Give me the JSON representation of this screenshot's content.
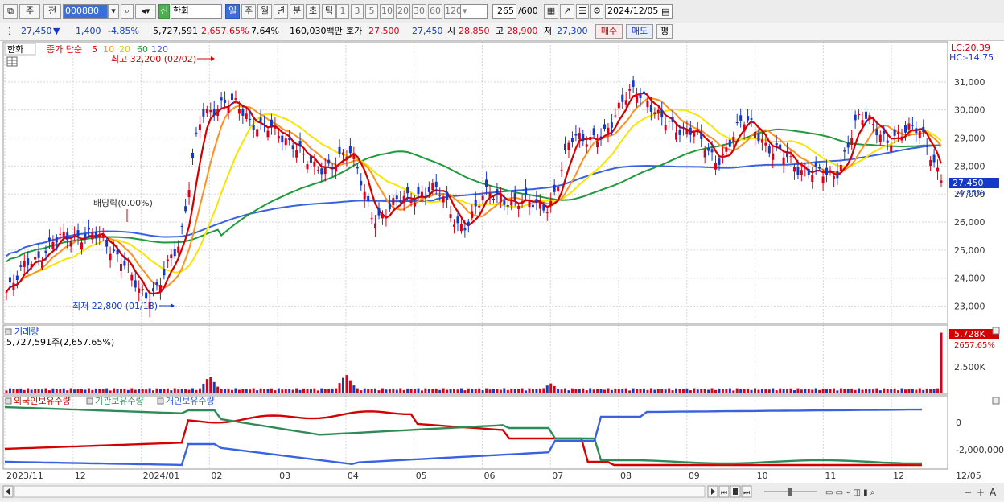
{
  "toolbar": {
    "period_button": "주",
    "prev_button": "전",
    "code": "000880",
    "shin_badge": "신",
    "stock_name": "한화",
    "period_tabs": [
      "일",
      "주",
      "월",
      "년",
      "분",
      "초",
      "틱"
    ],
    "minute_tabs": [
      "1",
      "3",
      "5",
      "10",
      "20",
      "30",
      "60",
      "120"
    ],
    "count": "265",
    "count_total": "/600",
    "date": "2024/12/05"
  },
  "quote": {
    "price": "27,450",
    "arrow": "▼",
    "change": "1,400",
    "change_pct": "-4.85%",
    "volume": "5,727,591",
    "volume_pct": "2,657.65%",
    "turnover": "7.64%",
    "amount": "160,030백만",
    "ask_label": "호가",
    "ask": "27,500",
    "bid": "27,450",
    "open_label": "시",
    "open": "28,850",
    "high_label": "고",
    "high": "28,900",
    "low_label": "저",
    "low": "27,300",
    "buy_button": "매수",
    "sell_button": "매도",
    "eval_button": "평"
  },
  "colors": {
    "up": "#d9001b",
    "down": "#1339c6",
    "ma5": "#d40000",
    "ma10": "#ff9020",
    "ma20": "#f6e600",
    "ma60": "#1f9a3c",
    "ma120": "#3a62e0",
    "foreign": "#d40000",
    "institution": "#2e8b57",
    "individual": "#3a62e0"
  },
  "price_panel": {
    "legend_name": "한화",
    "legend_type": "종가 단순",
    "ma_periods": [
      "5",
      "10",
      "20",
      "60",
      "120"
    ],
    "high_note": "최고 32,200 (02/02)",
    "low_note": "최저 22,800 (01/18)",
    "dividend_note": "배당락(0.00%)",
    "lc": "LC:20.39",
    "hc": "HC:-14.75",
    "current_price": "27,450",
    "current_pct": "-4.85%",
    "y_ticks": [
      "31,000",
      "30,000",
      "29,000",
      "28,000",
      "27,000",
      "26,000",
      "25,000",
      "24,000",
      "23,000"
    ]
  },
  "volume_panel": {
    "title": "거래량",
    "value_note": "5,727,591주(2,657.65%)",
    "current": "5,728K",
    "current_pct": "2657.65%",
    "y_tick": "2,500K"
  },
  "holding_panel": {
    "foreign": "외국인보유수량",
    "institution": "기관보유수량",
    "individual": "개인보유수량",
    "y_ticks": [
      "0",
      "-2,000,000"
    ]
  },
  "x_labels": [
    "2023/11",
    "12",
    "2024/01",
    "02",
    "03",
    "04",
    "05",
    "06",
    "07",
    "08",
    "09",
    "10",
    "11",
    "12",
    "12/05"
  ],
  "chart_data": {
    "type": "candlestick",
    "period": "daily",
    "ylim": [
      22500,
      32200
    ],
    "high": {
      "value": 32200,
      "date": "02/02"
    },
    "low": {
      "value": 22800,
      "date": "01/18"
    },
    "last": {
      "open": 28850,
      "high": 28900,
      "low": 27300,
      "close": 27450,
      "volume": 5727591
    },
    "price_path": [
      [
        "2023/11",
        23500
      ],
      [
        "11/15",
        24700
      ],
      [
        "12",
        25400
      ],
      [
        "12/20",
        25600
      ],
      [
        "2024/01",
        24800
      ],
      [
        "01/18",
        23200
      ],
      [
        "01/30",
        25000
      ],
      [
        "02",
        30000
      ],
      [
        "02/15",
        30200
      ],
      [
        "03",
        29400
      ],
      [
        "03/20",
        28900
      ],
      [
        "04",
        27800
      ],
      [
        "04/10",
        28500
      ],
      [
        "04/25",
        26200
      ],
      [
        "05",
        26800
      ],
      [
        "05/20",
        27200
      ],
      [
        "06",
        25900
      ],
      [
        "06/15",
        27000
      ],
      [
        "06/25",
        26700
      ],
      [
        "07",
        26600
      ],
      [
        "07/15",
        29000
      ],
      [
        "07/25",
        29100
      ],
      [
        "08",
        30800
      ],
      [
        "08/20",
        29700
      ],
      [
        "09",
        29200
      ],
      [
        "09/15",
        28300
      ],
      [
        "09/25",
        29600
      ],
      [
        "10",
        28500
      ],
      [
        "10/20",
        27900
      ],
      [
        "11",
        27600
      ],
      [
        "11/10",
        29700
      ],
      [
        "11/25",
        29000
      ],
      [
        "12",
        29300
      ],
      [
        "12/05",
        27450
      ]
    ],
    "volume_spikes": [
      {
        "date": "02",
        "value": 1600000
      },
      {
        "date": "04",
        "value": 1800000
      },
      {
        "date": "07",
        "value": 900000
      },
      {
        "date": "12/05",
        "value": 5727591
      }
    ]
  },
  "bottom_bar": {
    "zoom_out": "−",
    "zoom_in": "+",
    "font_button": "A"
  }
}
